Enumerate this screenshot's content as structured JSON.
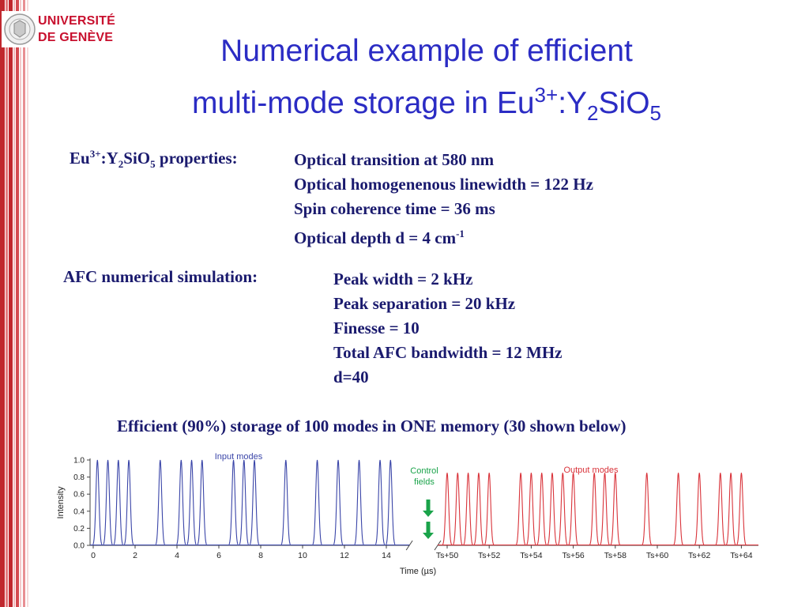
{
  "logo": {
    "line1": "UNIVERSITÉ",
    "line2": "DE GENÈVE"
  },
  "title": {
    "line1": "Numerical example of efficient",
    "line2_parts": [
      "multi-mode storage in Eu",
      "3+",
      ":Y",
      "2",
      "SiO",
      "5"
    ]
  },
  "properties": {
    "label_parts": [
      "Eu",
      "3+",
      ":Y",
      "2",
      "SiO",
      "5",
      " properties:"
    ],
    "items": [
      "Optical transition at 580 nm",
      "Optical homogenenous linewidth = 122 Hz",
      "Spin coherence time = 36 ms"
    ],
    "last_item_text": "Optical depth d = 4 cm",
    "last_item_sup": "-1"
  },
  "afc": {
    "label": "AFC numerical simulation:",
    "items": [
      "Peak width = 2 kHz",
      "Peak separation = 20 kHz",
      "Finesse = 10",
      "Total AFC bandwidth = 12 MHz",
      "d=40"
    ]
  },
  "headline": "Efficient (90%) storage of 100 modes in ONE memory (30 shown below)",
  "chart_data": {
    "type": "line",
    "ylabel": "Intensity",
    "xlabel": "Time (µs)",
    "y_ticks": [
      "0.0",
      "0.2",
      "0.4",
      "0.6",
      "0.8",
      "1.0"
    ],
    "ylim": [
      0,
      1.0
    ],
    "left_x_ticks": [
      "0",
      "2",
      "4",
      "6",
      "8",
      "10",
      "12",
      "14"
    ],
    "right_x_ticks": [
      "Ts+50",
      "Ts+52",
      "Ts+54",
      "Ts+56",
      "Ts+58",
      "Ts+60",
      "Ts+62",
      "Ts+64"
    ],
    "series": [
      {
        "name": "Input modes",
        "color": "#3a45a8",
        "segment": "left",
        "peak_height": 1.0,
        "peaks": [
          0.2,
          0.7,
          1.2,
          1.7,
          3.2,
          4.2,
          4.7,
          5.2,
          6.7,
          7.2,
          7.7,
          9.2,
          10.7,
          11.7,
          12.7,
          13.7,
          14.2
        ]
      },
      {
        "name": "Output modes",
        "color": "#d9333a",
        "segment": "right",
        "peak_height": 0.85,
        "peaks": [
          50.0,
          50.5,
          51.0,
          51.5,
          52.0,
          53.5,
          54.0,
          54.5,
          55.0,
          55.5,
          56.0,
          57.0,
          57.5,
          58.0,
          59.5,
          61.0,
          62.0,
          63.0,
          63.5,
          64.0
        ]
      }
    ],
    "annotation": {
      "lines": [
        "Control",
        "fields"
      ],
      "color": "#1aa34a",
      "icon": "arrow-down-icon"
    }
  }
}
